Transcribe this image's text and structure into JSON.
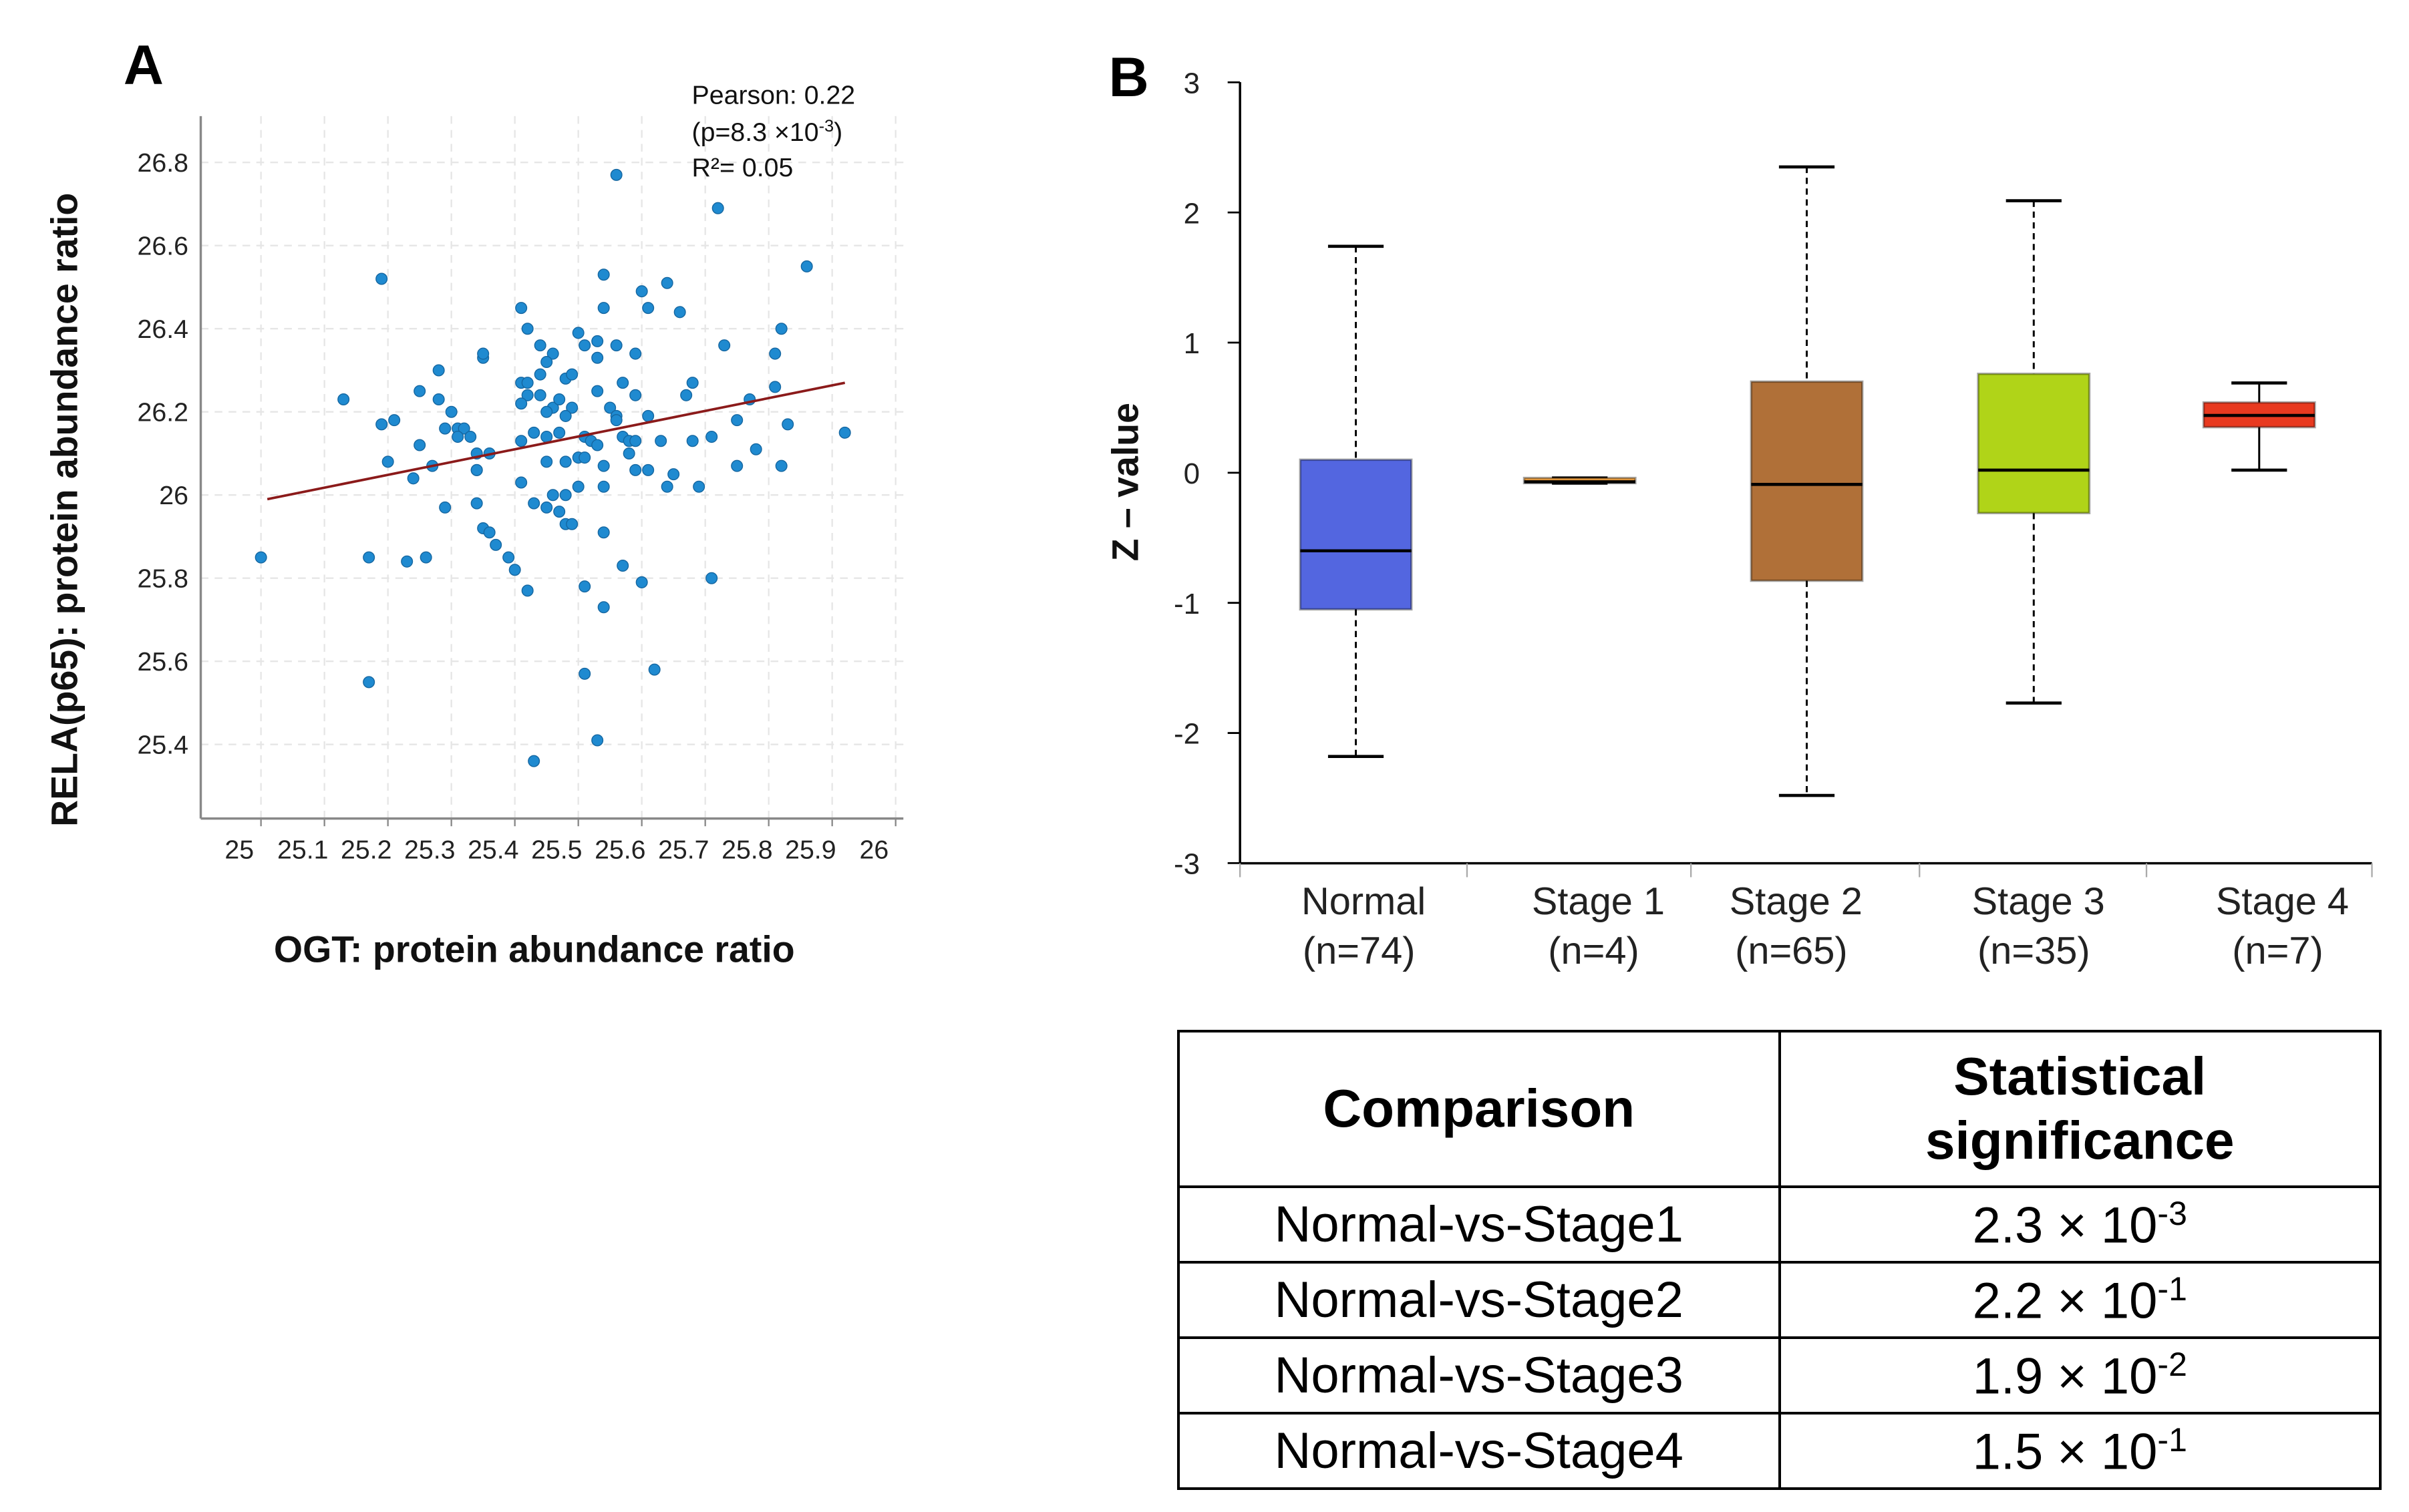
{
  "panel_a": {
    "label": "A",
    "stats": {
      "pearson": "Pearson: 0.22",
      "p_prefix": "(p=8.3 ×10",
      "p_exp": "-3",
      "p_suffix": ")",
      "r2": "R²= 0.05"
    }
  },
  "panel_b": {
    "label": "B"
  },
  "chart_data": [
    {
      "type": "scatter",
      "xlabel": "OGT: protein abundance ratio",
      "ylabel": "RELA(p65): protein abundance ratio",
      "xlim": [
        25,
        26
      ],
      "ylim": [
        25.25,
        26.92
      ],
      "xticks": [
        "25",
        "25.1",
        "25.2",
        "25.3",
        "25.4",
        "25.5",
        "25.6",
        "25.7",
        "25.8",
        "25.9",
        "26"
      ],
      "yticks": [
        "25.4",
        "25.6",
        "25.8",
        "26",
        "26.2",
        "26.4",
        "26.6",
        "26.8"
      ],
      "grid": true,
      "point_color": "#1f8ad0",
      "line_color": "#8b1a1a",
      "regression": {
        "x": [
          25.01,
          25.92
        ],
        "y": [
          25.99,
          26.27
        ]
      },
      "points": [
        [
          25.56,
          26.77
        ],
        [
          25.72,
          26.69
        ],
        [
          25.86,
          26.55
        ],
        [
          25.19,
          26.52
        ],
        [
          25.54,
          26.53
        ],
        [
          25.6,
          26.49
        ],
        [
          25.64,
          26.51
        ],
        [
          25.54,
          26.45
        ],
        [
          25.61,
          26.45
        ],
        [
          25.66,
          26.44
        ],
        [
          25.41,
          26.45
        ],
        [
          25.42,
          26.4
        ],
        [
          25.5,
          26.39
        ],
        [
          25.53,
          26.37
        ],
        [
          25.51,
          26.36
        ],
        [
          25.44,
          26.36
        ],
        [
          25.53,
          26.33
        ],
        [
          25.56,
          26.36
        ],
        [
          25.59,
          26.34
        ],
        [
          25.73,
          26.36
        ],
        [
          25.82,
          26.4
        ],
        [
          25.81,
          26.34
        ],
        [
          25.35,
          26.33
        ],
        [
          25.35,
          26.34
        ],
        [
          25.28,
          26.3
        ],
        [
          25.46,
          26.34
        ],
        [
          25.45,
          26.32
        ],
        [
          25.44,
          26.29
        ],
        [
          25.48,
          26.28
        ],
        [
          25.49,
          26.29
        ],
        [
          25.41,
          26.27
        ],
        [
          25.42,
          26.27
        ],
        [
          25.57,
          26.27
        ],
        [
          25.68,
          26.27
        ],
        [
          25.81,
          26.26
        ],
        [
          25.53,
          26.25
        ],
        [
          25.25,
          26.25
        ],
        [
          25.28,
          26.23
        ],
        [
          25.13,
          26.23
        ],
        [
          25.42,
          26.24
        ],
        [
          25.44,
          26.24
        ],
        [
          25.59,
          26.24
        ],
        [
          25.67,
          26.24
        ],
        [
          25.77,
          26.23
        ],
        [
          25.41,
          26.22
        ],
        [
          25.46,
          26.21
        ],
        [
          25.47,
          26.23
        ],
        [
          25.49,
          26.21
        ],
        [
          25.55,
          26.21
        ],
        [
          25.45,
          26.2
        ],
        [
          25.48,
          26.19
        ],
        [
          25.3,
          26.2
        ],
        [
          25.21,
          26.18
        ],
        [
          25.19,
          26.17
        ],
        [
          25.56,
          26.19
        ],
        [
          25.56,
          26.18
        ],
        [
          25.61,
          26.19
        ],
        [
          25.75,
          26.18
        ],
        [
          25.83,
          26.17
        ],
        [
          25.92,
          26.15
        ],
        [
          25.29,
          26.16
        ],
        [
          25.31,
          26.16
        ],
        [
          25.32,
          26.16
        ],
        [
          25.31,
          26.14
        ],
        [
          25.33,
          26.14
        ],
        [
          25.43,
          26.15
        ],
        [
          25.47,
          26.15
        ],
        [
          25.45,
          26.14
        ],
        [
          25.51,
          26.14
        ],
        [
          25.52,
          26.13
        ],
        [
          25.53,
          26.12
        ],
        [
          25.57,
          26.14
        ],
        [
          25.58,
          26.13
        ],
        [
          25.63,
          26.13
        ],
        [
          25.68,
          26.13
        ],
        [
          25.71,
          26.14
        ],
        [
          25.25,
          26.12
        ],
        [
          25.34,
          26.1
        ],
        [
          25.36,
          26.1
        ],
        [
          25.41,
          26.13
        ],
        [
          25.5,
          26.09
        ],
        [
          25.51,
          26.09
        ],
        [
          25.58,
          26.1
        ],
        [
          25.59,
          26.13
        ],
        [
          25.78,
          26.11
        ],
        [
          25.2,
          26.08
        ],
        [
          25.27,
          26.07
        ],
        [
          25.34,
          26.06
        ],
        [
          25.34,
          26.06
        ],
        [
          25.45,
          26.08
        ],
        [
          25.48,
          26.08
        ],
        [
          25.54,
          26.07
        ],
        [
          25.59,
          26.06
        ],
        [
          25.61,
          26.06
        ],
        [
          25.75,
          26.07
        ],
        [
          25.82,
          26.07
        ],
        [
          25.24,
          26.04
        ],
        [
          25.41,
          26.03
        ],
        [
          25.5,
          26.02
        ],
        [
          25.54,
          26.02
        ],
        [
          25.64,
          26.02
        ],
        [
          25.65,
          26.05
        ],
        [
          25.69,
          26.02
        ],
        [
          25.46,
          26.0
        ],
        [
          25.48,
          26.0
        ],
        [
          25.43,
          25.98
        ],
        [
          25.29,
          25.97
        ],
        [
          25.34,
          25.98
        ],
        [
          25.45,
          25.97
        ],
        [
          25.47,
          25.96
        ],
        [
          25.35,
          25.92
        ],
        [
          25.48,
          25.93
        ],
        [
          25.49,
          25.93
        ],
        [
          25.54,
          25.91
        ],
        [
          25.36,
          25.91
        ],
        [
          25.37,
          25.88
        ],
        [
          25.39,
          25.85
        ],
        [
          25.0,
          25.85
        ],
        [
          25.17,
          25.85
        ],
        [
          25.23,
          25.84
        ],
        [
          25.26,
          25.85
        ],
        [
          25.4,
          25.82
        ],
        [
          25.57,
          25.83
        ],
        [
          25.6,
          25.79
        ],
        [
          25.71,
          25.8
        ],
        [
          25.42,
          25.77
        ],
        [
          25.51,
          25.78
        ],
        [
          25.54,
          25.73
        ],
        [
          25.17,
          25.55
        ],
        [
          25.51,
          25.57
        ],
        [
          25.62,
          25.58
        ],
        [
          25.53,
          25.41
        ],
        [
          25.43,
          25.36
        ]
      ]
    },
    {
      "type": "box",
      "ylabel": "Z – value",
      "ylim": [
        -3,
        3
      ],
      "yticks": [
        "3",
        "2",
        "1",
        "0",
        "-1",
        "-2",
        "-3"
      ],
      "categories": [
        {
          "name": "Normal",
          "n": "(n=74)",
          "color": "#5366e0",
          "min": -2.18,
          "q1": -1.05,
          "median": -0.6,
          "q3": 0.1,
          "max": 1.74,
          "dashed": true
        },
        {
          "name": "Stage 1",
          "n": "(n=4)",
          "color": "#f0a040",
          "min": -0.08,
          "q1": -0.08,
          "median": -0.07,
          "q3": -0.04,
          "max": -0.04,
          "dashed": false
        },
        {
          "name": "Stage 2",
          "n": "(n=65)",
          "color": "#b07038",
          "min": -2.48,
          "q1": -0.83,
          "median": -0.09,
          "q3": 0.7,
          "max": 2.35,
          "dashed": true
        },
        {
          "name": "Stage 3",
          "n": "(n=35)",
          "color": "#b0d418",
          "min": -1.77,
          "q1": -0.31,
          "median": 0.02,
          "q3": 0.76,
          "max": 2.09,
          "dashed": true
        },
        {
          "name": "Stage 4",
          "n": "(n=7)",
          "color": "#e83a20",
          "min": 0.02,
          "q1": 0.35,
          "median": 0.44,
          "q3": 0.54,
          "max": 0.69,
          "dashed": false
        }
      ]
    }
  ],
  "table": {
    "headers": [
      "Comparison",
      "Statistical",
      "significance"
    ],
    "rows": [
      {
        "comparison": "Normal-vs-Stage1",
        "mantissa": "2.3 × 10",
        "exp": "-3"
      },
      {
        "comparison": "Normal-vs-Stage2",
        "mantissa": "2.2 × 10",
        "exp": "-1"
      },
      {
        "comparison": "Normal-vs-Stage3",
        "mantissa": "1.9 × 10",
        "exp": "-2"
      },
      {
        "comparison": "Normal-vs-Stage4",
        "mantissa": "1.5 × 10",
        "exp": "-1"
      }
    ]
  }
}
